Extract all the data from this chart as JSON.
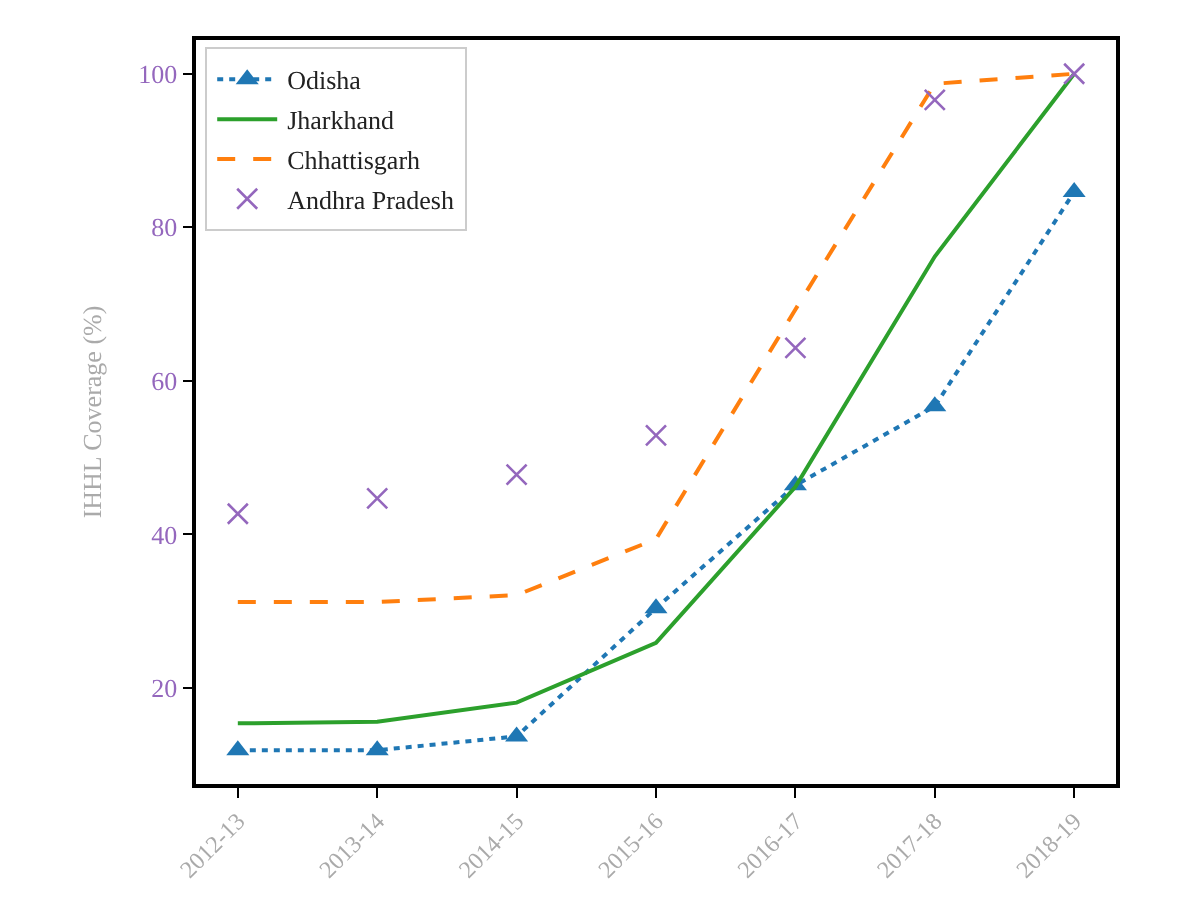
{
  "chart_data": {
    "type": "line",
    "ylabel": "IHHL Coverage (%)",
    "categories": [
      "2012-13",
      "2013-14",
      "2014-15",
      "2015-16",
      "2016-17",
      "2017-18",
      "2018-19"
    ],
    "series": [
      {
        "name": "Odisha",
        "color": "#1f77b4",
        "marker": "triangle",
        "line_style": "dotted",
        "values": [
          11.9,
          11.9,
          13.7,
          30.4,
          46.4,
          56.7,
          84.6
        ]
      },
      {
        "name": "Jharkhand",
        "color": "#2ca02c",
        "marker": "none",
        "line_style": "solid",
        "values": [
          15.4,
          15.6,
          18.1,
          25.9,
          46.2,
          76.2,
          100
        ]
      },
      {
        "name": "Chhattisgarh",
        "color": "#ff7f0e",
        "marker": "none",
        "line_style": "dashed",
        "values": [
          31.2,
          31.2,
          32.1,
          39.4,
          69.3,
          98.7,
          100
        ]
      },
      {
        "name": "Andhra Pradesh",
        "type": "scatter",
        "color": "#9467bd",
        "marker": "cross",
        "values": [
          42.7,
          44.7,
          47.8,
          52.9,
          64.3,
          96.6,
          100
        ]
      }
    ],
    "ylim": [
      7.5,
      104.4
    ],
    "yticks": [
      20,
      40,
      60,
      80,
      100
    ],
    "legend": "top left"
  }
}
